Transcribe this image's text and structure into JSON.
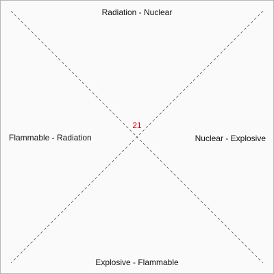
{
  "diagram": {
    "top": "Radiation - Nuclear",
    "right": "Nuclear - Explosive",
    "bottom": "Explosive - Flammable",
    "left": "Flammable - Radiation",
    "center_value": "21"
  },
  "colors": {
    "line": "#555555",
    "center_value": "#d00000",
    "border": "#b5b5b5",
    "background": "#fafafa"
  }
}
